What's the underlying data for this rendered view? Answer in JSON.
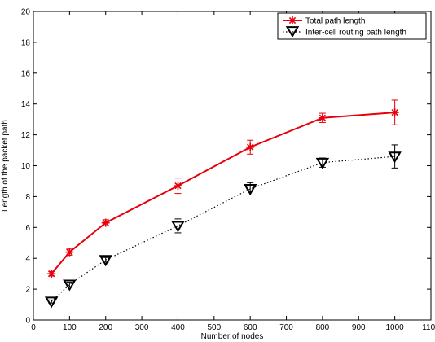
{
  "chart_data": {
    "type": "line",
    "title": "",
    "xlabel": "Number of nodes",
    "ylabel": "Length of the packet path",
    "xlim": [
      0,
      1100
    ],
    "ylim": [
      0,
      20
    ],
    "xticks": [
      0,
      100,
      200,
      300,
      400,
      500,
      600,
      700,
      800,
      900,
      1000,
      1100
    ],
    "yticks": [
      0,
      2,
      4,
      6,
      8,
      10,
      12,
      14,
      16,
      18,
      20
    ],
    "grid": false,
    "legend_position": "top-right",
    "series": [
      {
        "name": "Total path length",
        "color": "#e8000b",
        "line_style": "solid",
        "marker": "asterisk",
        "x": [
          50,
          100,
          200,
          400,
          600,
          800,
          1000
        ],
        "y": [
          3.0,
          4.4,
          6.3,
          8.7,
          11.2,
          13.1,
          13.45
        ],
        "err": [
          0.15,
          0.2,
          0.2,
          0.5,
          0.45,
          0.3,
          0.8
        ]
      },
      {
        "name": "Inter-cell routing path length",
        "color": "#000000",
        "line_style": "dotted",
        "marker": "triangle-down",
        "x": [
          50,
          100,
          200,
          400,
          600,
          800,
          1000
        ],
        "y": [
          1.2,
          2.3,
          3.9,
          6.1,
          8.5,
          10.2,
          10.6
        ],
        "err": [
          0.1,
          0.15,
          0.15,
          0.45,
          0.4,
          0.3,
          0.75
        ]
      }
    ]
  }
}
